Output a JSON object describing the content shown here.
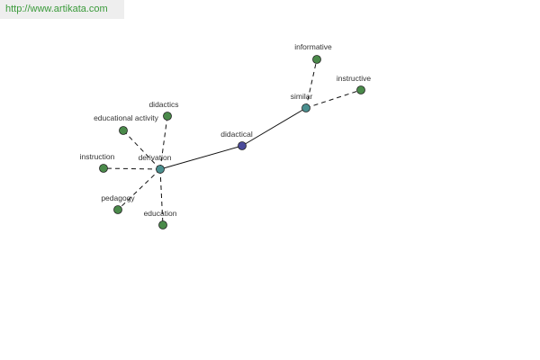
{
  "header": {
    "url": "http://www.artikata.com"
  },
  "nodes": [
    {
      "label": "didactical"
    },
    {
      "label": "derivation"
    },
    {
      "label": "similar"
    },
    {
      "label": "informative"
    },
    {
      "label": "instructive"
    },
    {
      "label": "didactics"
    },
    {
      "label": "educational activity"
    },
    {
      "label": "instruction"
    },
    {
      "label": "pedagogy"
    },
    {
      "label": "education"
    }
  ]
}
